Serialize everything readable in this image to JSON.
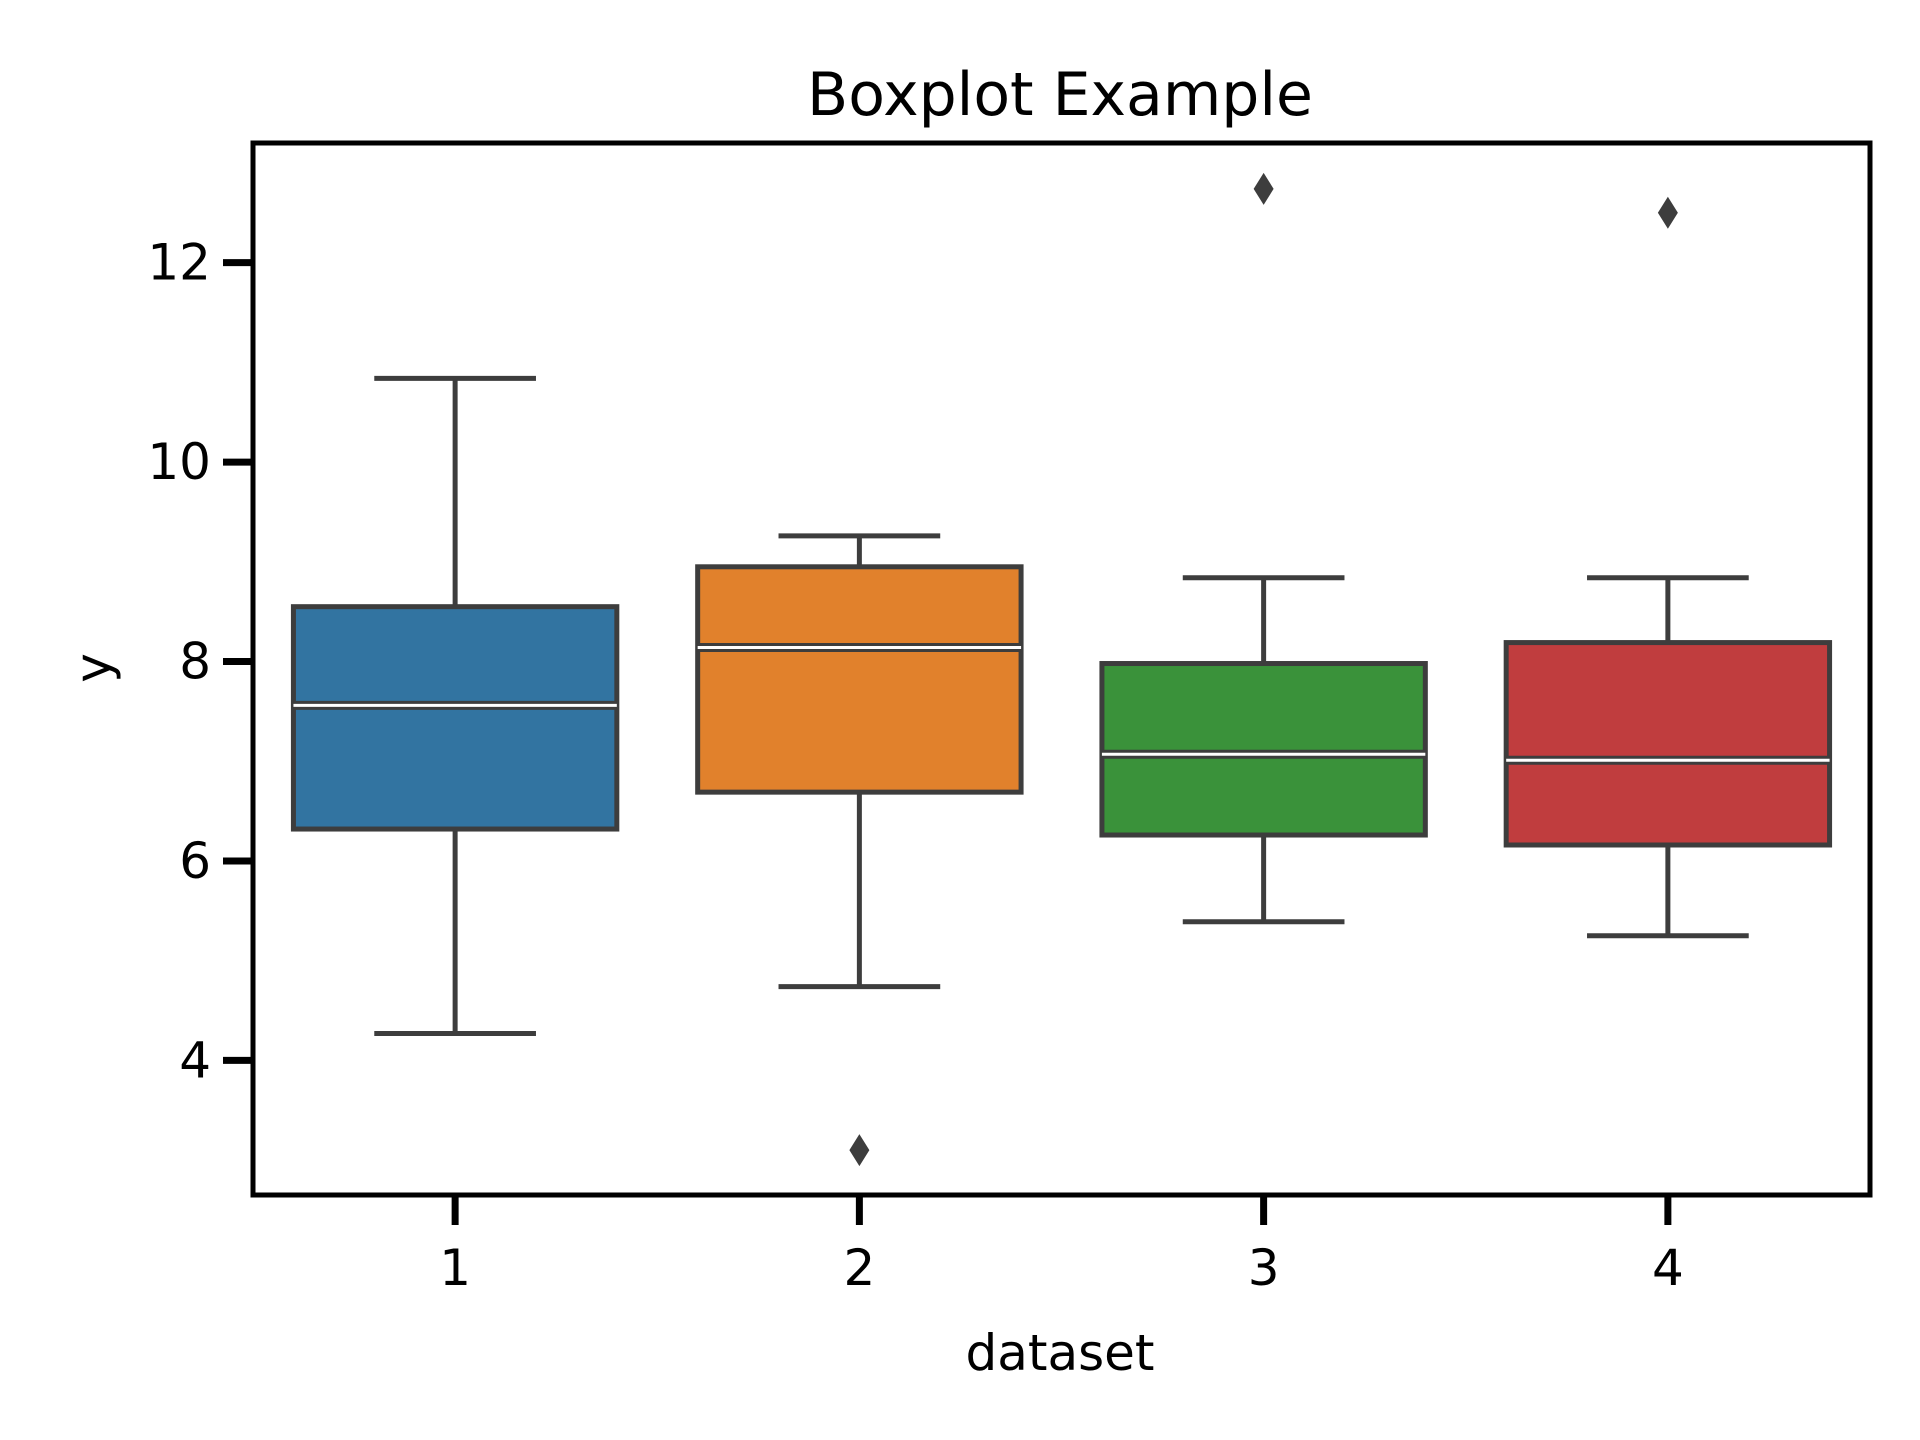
{
  "chart_data": {
    "type": "boxplot",
    "title": "Boxplot Example",
    "xlabel": "dataset",
    "ylabel": "y",
    "ylim": [
      2.65,
      13.2
    ],
    "yticks": [
      4,
      6,
      8,
      10,
      12
    ],
    "grid": false,
    "legend": "none",
    "categories": [
      "1",
      "2",
      "3",
      "4"
    ],
    "boxes": [
      {
        "category": "1",
        "whisker_low": 4.27,
        "q1": 6.32,
        "median": 7.56,
        "q3": 8.55,
        "whisker_high": 10.84,
        "outliers": [],
        "color": "#3274a1"
      },
      {
        "category": "2",
        "whisker_low": 4.74,
        "q1": 6.69,
        "median": 8.14,
        "q3": 8.95,
        "whisker_high": 9.26,
        "outliers": [
          3.1
        ],
        "color": "#e1812c"
      },
      {
        "category": "3",
        "whisker_low": 5.39,
        "q1": 6.26,
        "median": 7.07,
        "q3": 7.98,
        "whisker_high": 8.84,
        "outliers": [
          12.74
        ],
        "color": "#3a923a"
      },
      {
        "category": "4",
        "whisker_low": 5.25,
        "q1": 6.16,
        "median": 7.01,
        "q3": 8.19,
        "whisker_high": 8.84,
        "outliers": [
          12.5
        ],
        "color": "#c03d3e"
      }
    ],
    "colors": {
      "edge": "#3d3d3d",
      "median": "#ffffff",
      "frame": "#000000"
    }
  }
}
